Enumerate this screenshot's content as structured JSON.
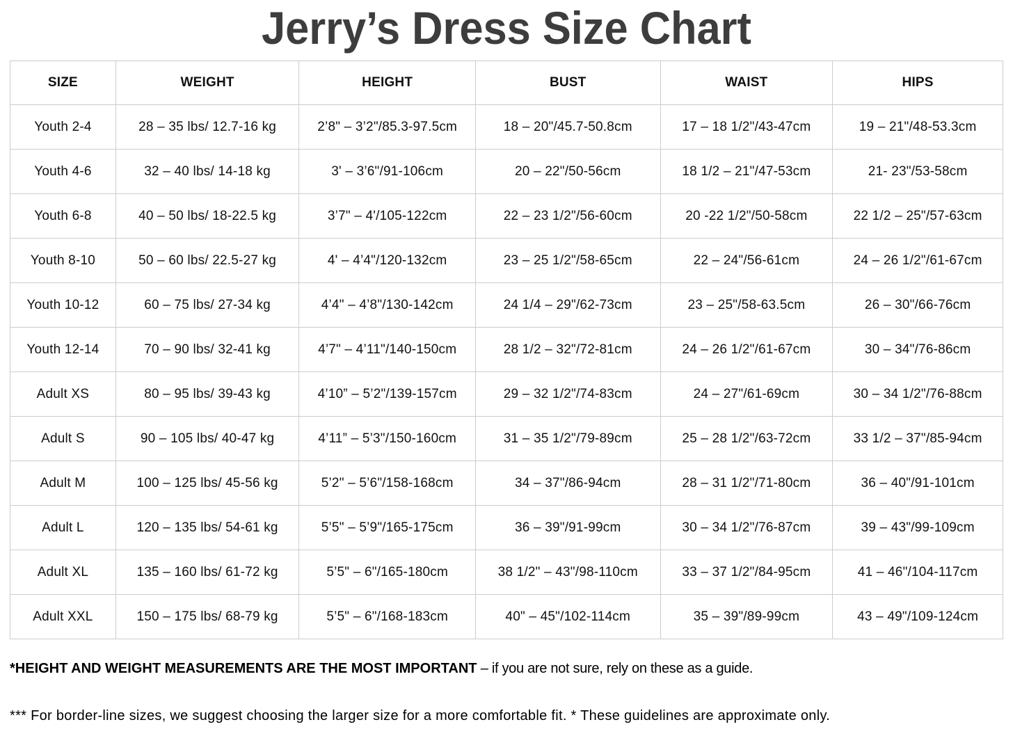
{
  "title": "Jerry’s Dress Size Chart",
  "table": {
    "headers": [
      "SIZE",
      "WEIGHT",
      "HEIGHT",
      "BUST",
      "WAIST",
      "HIPS"
    ],
    "rows": [
      [
        "Youth 2-4",
        "28 – 35 lbs/ 12.7-16 kg",
        "2’8\" – 3’2\"/85.3-97.5cm",
        "18 – 20\"/45.7-50.8cm",
        "17 – 18 1/2\"/43-47cm",
        "19 – 21\"/48-53.3cm"
      ],
      [
        "Youth 4-6",
        "32 – 40 lbs/ 14-18 kg",
        "3' – 3’6\"/91-106cm",
        "20 – 22\"/50-56cm",
        "18 1/2 – 21\"/47-53cm",
        "21- 23\"/53-58cm"
      ],
      [
        "Youth 6-8",
        "40 – 50 lbs/ 18-22.5 kg",
        "3’7\" – 4'/105-122cm",
        "22 – 23 1/2\"/56-60cm",
        "20 -22 1/2\"/50-58cm",
        "22 1/2 – 25\"/57-63cm"
      ],
      [
        "Youth 8-10",
        "50 – 60 lbs/ 22.5-27 kg",
        "4' – 4’4\"/120-132cm",
        "23 – 25 1/2\"/58-65cm",
        "22 – 24\"/56-61cm",
        "24 – 26 1/2\"/61-67cm"
      ],
      [
        "Youth 10-12",
        "60 – 75 lbs/ 27-34 kg",
        "4’4\" – 4’8\"/130-142cm",
        "24 1/4 – 29\"/62-73cm",
        "23 – 25\"/58-63.5cm",
        "26 – 30\"/66-76cm"
      ],
      [
        "Youth 12-14",
        "70 – 90 lbs/ 32-41 kg",
        "4’7\" – 4’11\"/140-150cm",
        "28 1/2 – 32\"/72-81cm",
        "24 – 26 1/2\"/61-67cm",
        "30 – 34\"/76-86cm"
      ],
      [
        "Adult XS",
        "80 – 95 lbs/ 39-43 kg",
        "4’10” – 5’2\"/139-157cm",
        "29 – 32 1/2\"/74-83cm",
        "24 – 27\"/61-69cm",
        "30 – 34 1/2\"/76-88cm"
      ],
      [
        "Adult S",
        "90 – 105 lbs/ 40-47 kg",
        "4’11” – 5’3\"/150-160cm",
        "31 – 35 1/2\"/79-89cm",
        "25 – 28 1/2\"/63-72cm",
        "33 1/2 – 37\"/85-94cm"
      ],
      [
        "Adult M",
        "100 – 125 lbs/ 45-56 kg",
        "5’2\" – 5’6\"/158-168cm",
        "34 – 37\"/86-94cm",
        "28 – 31 1/2\"/71-80cm",
        "36 – 40\"/91-101cm"
      ],
      [
        "Adult L",
        "120 – 135 lbs/ 54-61 kg",
        "5’5\" – 5’9\"/165-175cm",
        "36 – 39\"/91-99cm",
        "30 – 34 1/2\"/76-87cm",
        "39 – 43\"/99-109cm"
      ],
      [
        "Adult XL",
        "135 – 160 lbs/ 61-72 kg",
        "5’5\" – 6\"/165-180cm",
        "38 1/2\" – 43\"/98-110cm",
        "33 – 37 1/2\"/84-95cm",
        "41 – 46\"/104-117cm"
      ],
      [
        "Adult XXL",
        "150 – 175 lbs/ 68-79 kg",
        "5’5\" – 6\"/168-183cm",
        "40\" – 45\"/102-114cm",
        "35 – 39\"/89-99cm",
        "43 – 49\"/109-124cm"
      ]
    ]
  },
  "footnotes": {
    "note1_bold": "*HEIGHT AND WEIGHT MEASUREMENTS ARE THE MOST IMPORTANT",
    "note1_rest": " – if you are not sure, rely on these as a guide.",
    "note2": "*** For border-line sizes, we suggest choosing the larger size for a more comfortable fit. * These guidelines are approximate only."
  }
}
